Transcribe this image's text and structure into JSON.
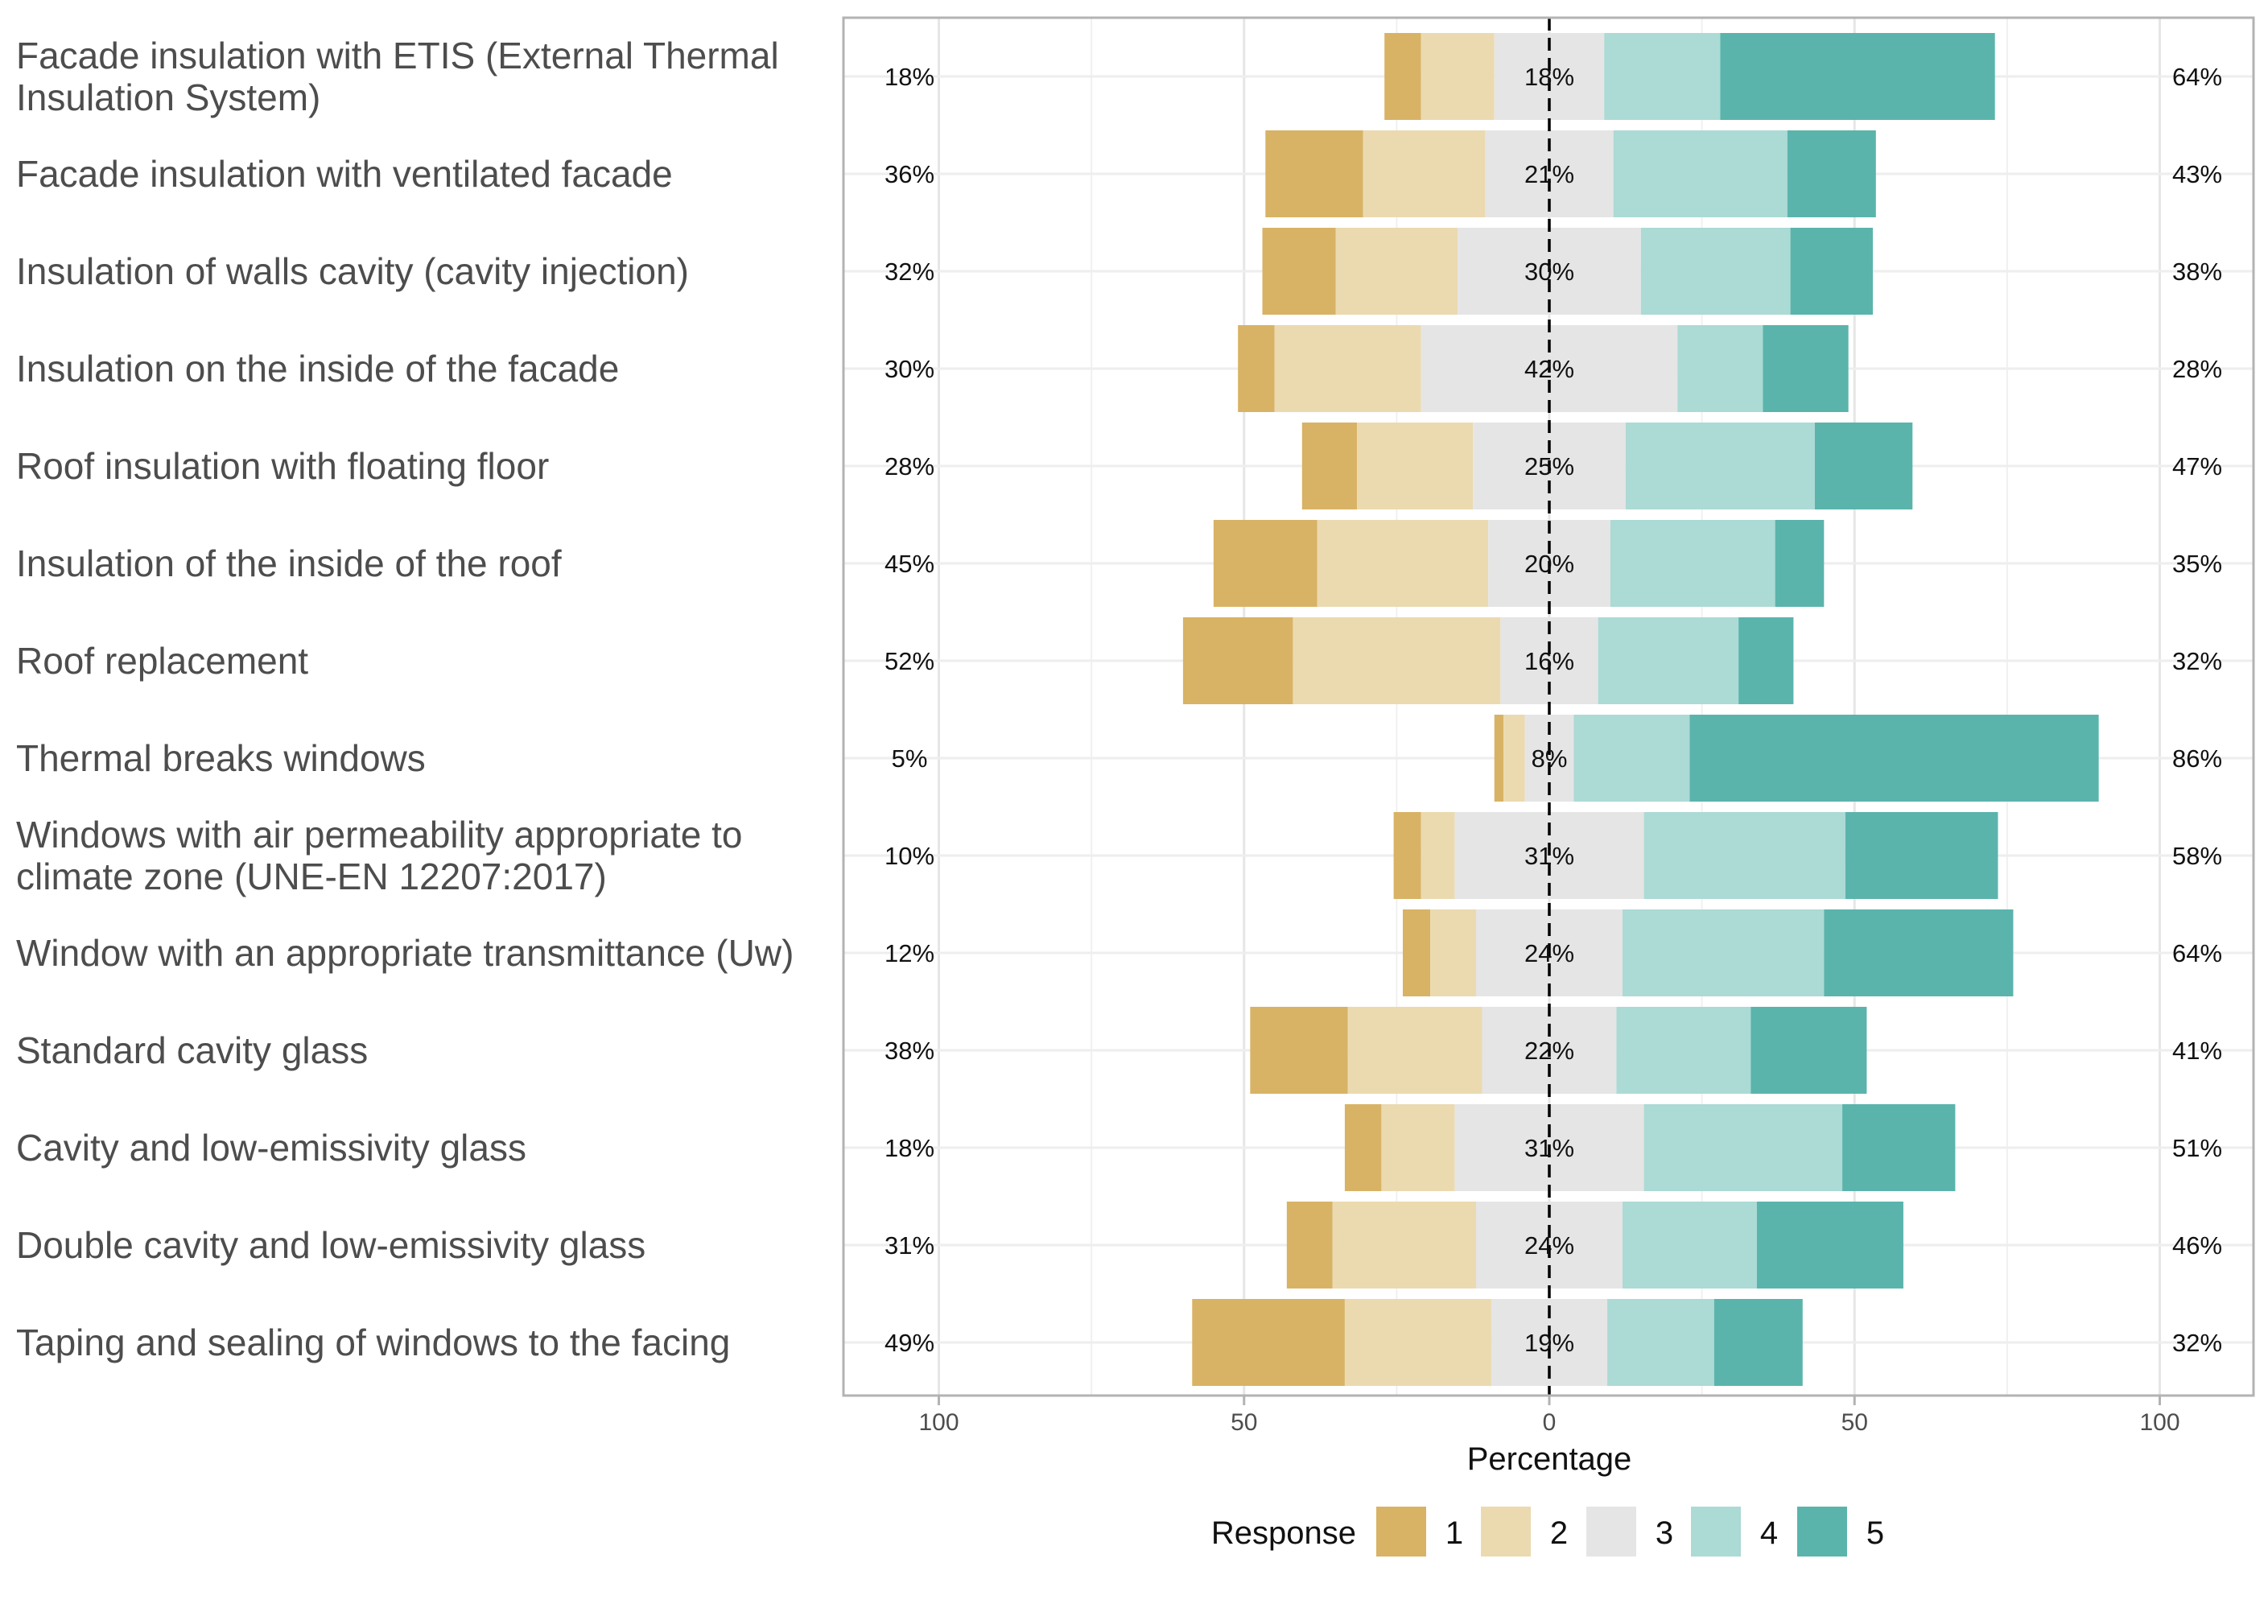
{
  "chart_data": {
    "type": "bar",
    "orientation": "horizontal",
    "stacking": "diverging",
    "categories": [
      [
        "Facade insulation with ETIS (External Thermal",
        "Insulation System)"
      ],
      [
        "Facade insulation with ventilated facade"
      ],
      [
        "Insulation of walls cavity (cavity injection)"
      ],
      [
        "Insulation on the inside of the facade"
      ],
      [
        "Roof insulation with floating floor"
      ],
      [
        "Insulation of the inside of the roof"
      ],
      [
        "Roof replacement"
      ],
      [
        "Thermal breaks windows"
      ],
      [
        "Windows with air permeability appropriate to",
        "climate zone (UNE-EN 12207:2017)"
      ],
      [
        "Window with an appropriate transmittance (Uw)"
      ],
      [
        "Standard cavity glass"
      ],
      [
        "Cavity and low-emissivity glass"
      ],
      [
        "Double cavity and low-emissivity glass"
      ],
      [
        "Taping and sealing of windows to the facing"
      ]
    ],
    "series": [
      {
        "name": "1",
        "values": [
          6,
          16,
          12,
          6,
          9,
          17,
          18,
          1.5,
          4.5,
          4.5,
          16,
          6,
          7.5,
          25
        ]
      },
      {
        "name": "2",
        "values": [
          12,
          20,
          20,
          24,
          19,
          28,
          34,
          3.5,
          5.5,
          7.5,
          22,
          12,
          23.5,
          24
        ]
      },
      {
        "name": "3",
        "values": [
          18,
          21,
          30,
          42,
          25,
          20,
          16,
          8,
          31,
          24,
          22,
          31,
          24,
          19
        ]
      },
      {
        "name": "4",
        "values": [
          19,
          28.5,
          24.5,
          14,
          31,
          27,
          23,
          19,
          33,
          33,
          22,
          32.5,
          22,
          17.5
        ]
      },
      {
        "name": "5",
        "values": [
          45,
          14.5,
          13.5,
          14,
          16,
          8,
          9,
          67,
          25,
          31,
          19,
          18.5,
          24,
          14.5
        ]
      }
    ],
    "left_labels": [
      "18%",
      "36%",
      "32%",
      "30%",
      "28%",
      "45%",
      "52%",
      "5%",
      "10%",
      "12%",
      "38%",
      "18%",
      "31%",
      "49%"
    ],
    "center_labels": [
      "18%",
      "21%",
      "30%",
      "42%",
      "25%",
      "20%",
      "16%",
      "8%",
      "31%",
      "24%",
      "22%",
      "31%",
      "24%",
      "19%"
    ],
    "right_labels": [
      "64%",
      "43%",
      "38%",
      "28%",
      "47%",
      "35%",
      "32%",
      "86%",
      "58%",
      "64%",
      "41%",
      "51%",
      "46%",
      "32%"
    ],
    "colors": [
      "#d8b365",
      "#ebdab0",
      "#e5e5e5",
      "#acdad5",
      "#5ab4ac"
    ],
    "xlim": [
      -100,
      100
    ],
    "xticks": [
      -100,
      -50,
      0,
      50,
      100
    ],
    "xtick_labels": [
      "100",
      "50",
      "0",
      "50",
      "100"
    ],
    "xlabel": "Percentage",
    "legend": {
      "title": "Response",
      "position": "bottom",
      "labels": [
        "1",
        "2",
        "3",
        "4",
        "5"
      ]
    },
    "grid": true,
    "zero_line": "dashed"
  }
}
